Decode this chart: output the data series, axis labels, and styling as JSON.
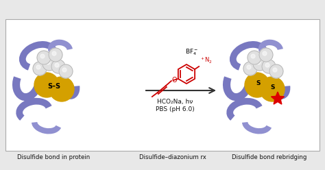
{
  "figure_bg": "#e8e8e8",
  "border_color": "#aaaaaa",
  "caption_left": "Disulfide bond in protein",
  "caption_center": "Disulfide–diazonium rx",
  "caption_right": "Disulfide bond rebridging",
  "reagent_line2": "HCO₂Na, hν",
  "reagent_line3": "PBS (pH 6.0)",
  "ss_label_left": "S–S",
  "ss_label_right1": "S",
  "ss_label_right2": "S",
  "protein_color": "#7878c0",
  "protein_color2": "#9090d0",
  "sulfur_color": "#d4a000",
  "white_sphere": "#e0e0e0",
  "chemical_color": "#cc0000",
  "arrow_color": "#333333",
  "star_color": "#dd0000",
  "text_color": "#111111"
}
